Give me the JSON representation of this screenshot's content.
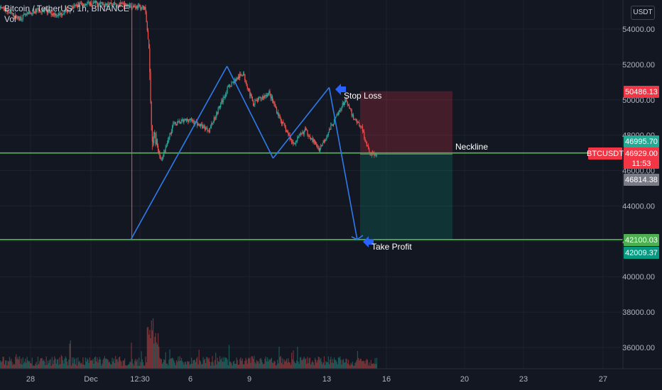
{
  "header": {
    "symbol_line": "Bitcoin / TetherUS, 1h, BINANCE",
    "indicator": "Vol"
  },
  "price_axis": {
    "unit": "USDT",
    "ticks": [
      54000,
      52000,
      50000,
      48000,
      46000,
      44000,
      42000,
      40000,
      38000,
      36000
    ],
    "tick_labels": [
      "54000.00",
      "52000.00",
      "50000.00",
      "48000.00",
      "46000.00",
      "44000.00",
      "42000.00",
      "40000.00",
      "38000.00",
      "36000.00"
    ]
  },
  "time_axis": {
    "labels": [
      "28",
      "Dec",
      "12:30",
      "6",
      "9",
      "13",
      "16",
      "20",
      "23",
      "27"
    ]
  },
  "tags": [
    {
      "label": "50486.13",
      "price": 50486.13,
      "color": "#f23645"
    },
    {
      "label": "46995.70",
      "price": 46995.7,
      "color": "#22ab94"
    },
    {
      "label": "46929.00",
      "sublabel": "11:53",
      "price": 46929.0,
      "color": "#f23645"
    },
    {
      "label": "46814.38",
      "price": 46814.38,
      "color": "#787b86"
    },
    {
      "label": "42100.03",
      "price": 42100.03,
      "color": "#4caf50"
    },
    {
      "label": "42009.37",
      "price": 42009.37,
      "color": "#089981"
    }
  ],
  "symbol_tag": "BTCUSDT",
  "annotations": {
    "stop_loss": "Stop Loss",
    "take_profit": "Take Profit",
    "neckline": "Neckline"
  },
  "chart_data": {
    "type": "candlestick",
    "symbol": "BTCUSDT",
    "interval": "1h",
    "exchange": "BINANCE",
    "ylim": [
      35000,
      55500
    ],
    "horizontal_lines": [
      46995.7,
      42100.03
    ],
    "pattern_points": [
      {
        "x": "Dec 3",
        "y": 42100
      },
      {
        "x": "Dec 7",
        "y": 51900
      },
      {
        "x": "Dec 10",
        "y": 46700
      },
      {
        "x": "Dec 13",
        "y": 50700
      },
      {
        "x": "Dec 14",
        "y": 42100
      }
    ],
    "position": {
      "entry": 46929.0,
      "stop": 50486.13,
      "target": 42100.03
    },
    "colors": {
      "up": "#26a69a",
      "down": "#ef5350",
      "lines": "#4caf50",
      "pattern": "#2f7bea"
    }
  }
}
